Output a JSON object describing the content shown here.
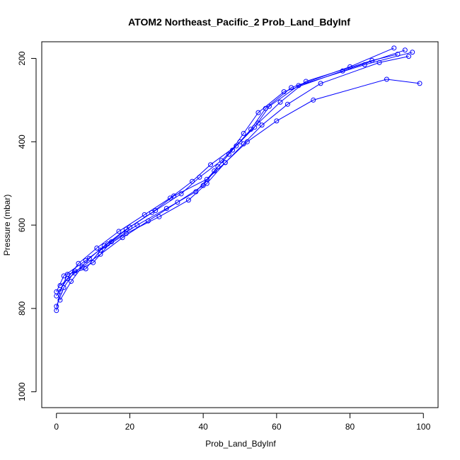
{
  "chart_data": {
    "type": "line",
    "title": "ATOM2 Northeast_Pacific_2 Prob_Land_BdyInf",
    "xlabel": "Prob_Land_BdyInf",
    "ylabel": "Pressure (mbar)",
    "xlim": [
      -4,
      104
    ],
    "ylim": [
      1038,
      160
    ],
    "x_ticks": [
      0,
      20,
      40,
      60,
      80,
      100
    ],
    "y_ticks": [
      200,
      400,
      600,
      800,
      1000
    ],
    "y_reversed": true,
    "grid": false,
    "markers": "open-circle",
    "colors": {
      "series": "#0000ff"
    },
    "series": [
      {
        "x": [
          0,
          1,
          3,
          8,
          12,
          19,
          28,
          36,
          41,
          46,
          52,
          60,
          70,
          90,
          99
        ],
        "y": [
          805,
          760,
          718,
          705,
          660,
          620,
          580,
          540,
          500,
          450,
          400,
          350,
          300,
          250,
          260
        ]
      },
      {
        "x": [
          0,
          2,
          5,
          10,
          15,
          22,
          30,
          38,
          43,
          47,
          51,
          55,
          62,
          78,
          95
        ],
        "y": [
          795,
          750,
          710,
          690,
          640,
          600,
          560,
          520,
          470,
          430,
          380,
          330,
          280,
          230,
          180
        ]
      },
      {
        "x": [
          1,
          4,
          7,
          12,
          18,
          25,
          33,
          40,
          44,
          48,
          53,
          57,
          64,
          80,
          92
        ],
        "y": [
          780,
          735,
          700,
          670,
          630,
          590,
          545,
          505,
          460,
          420,
          370,
          320,
          270,
          220,
          175
        ]
      },
      {
        "x": [
          0,
          3,
          6,
          11,
          17,
          24,
          31,
          37,
          42,
          49,
          54,
          58,
          66,
          84,
          97
        ],
        "y": [
          770,
          728,
          692,
          655,
          615,
          575,
          535,
          495,
          455,
          410,
          365,
          315,
          265,
          215,
          185
        ]
      },
      {
        "x": [
          0,
          2,
          8,
          14,
          20,
          27,
          34,
          39,
          45,
          50,
          55,
          61,
          68,
          86,
          93
        ],
        "y": [
          760,
          722,
          685,
          645,
          605,
          565,
          525,
          485,
          445,
          400,
          355,
          305,
          255,
          205,
          190
        ]
      },
      {
        "x": [
          1,
          5,
          9,
          13,
          19,
          26,
          32,
          41,
          46,
          51,
          56,
          63,
          72,
          88,
          96
        ],
        "y": [
          745,
          715,
          680,
          650,
          610,
          570,
          530,
          490,
          450,
          405,
          360,
          310,
          260,
          210,
          195
        ]
      }
    ]
  }
}
